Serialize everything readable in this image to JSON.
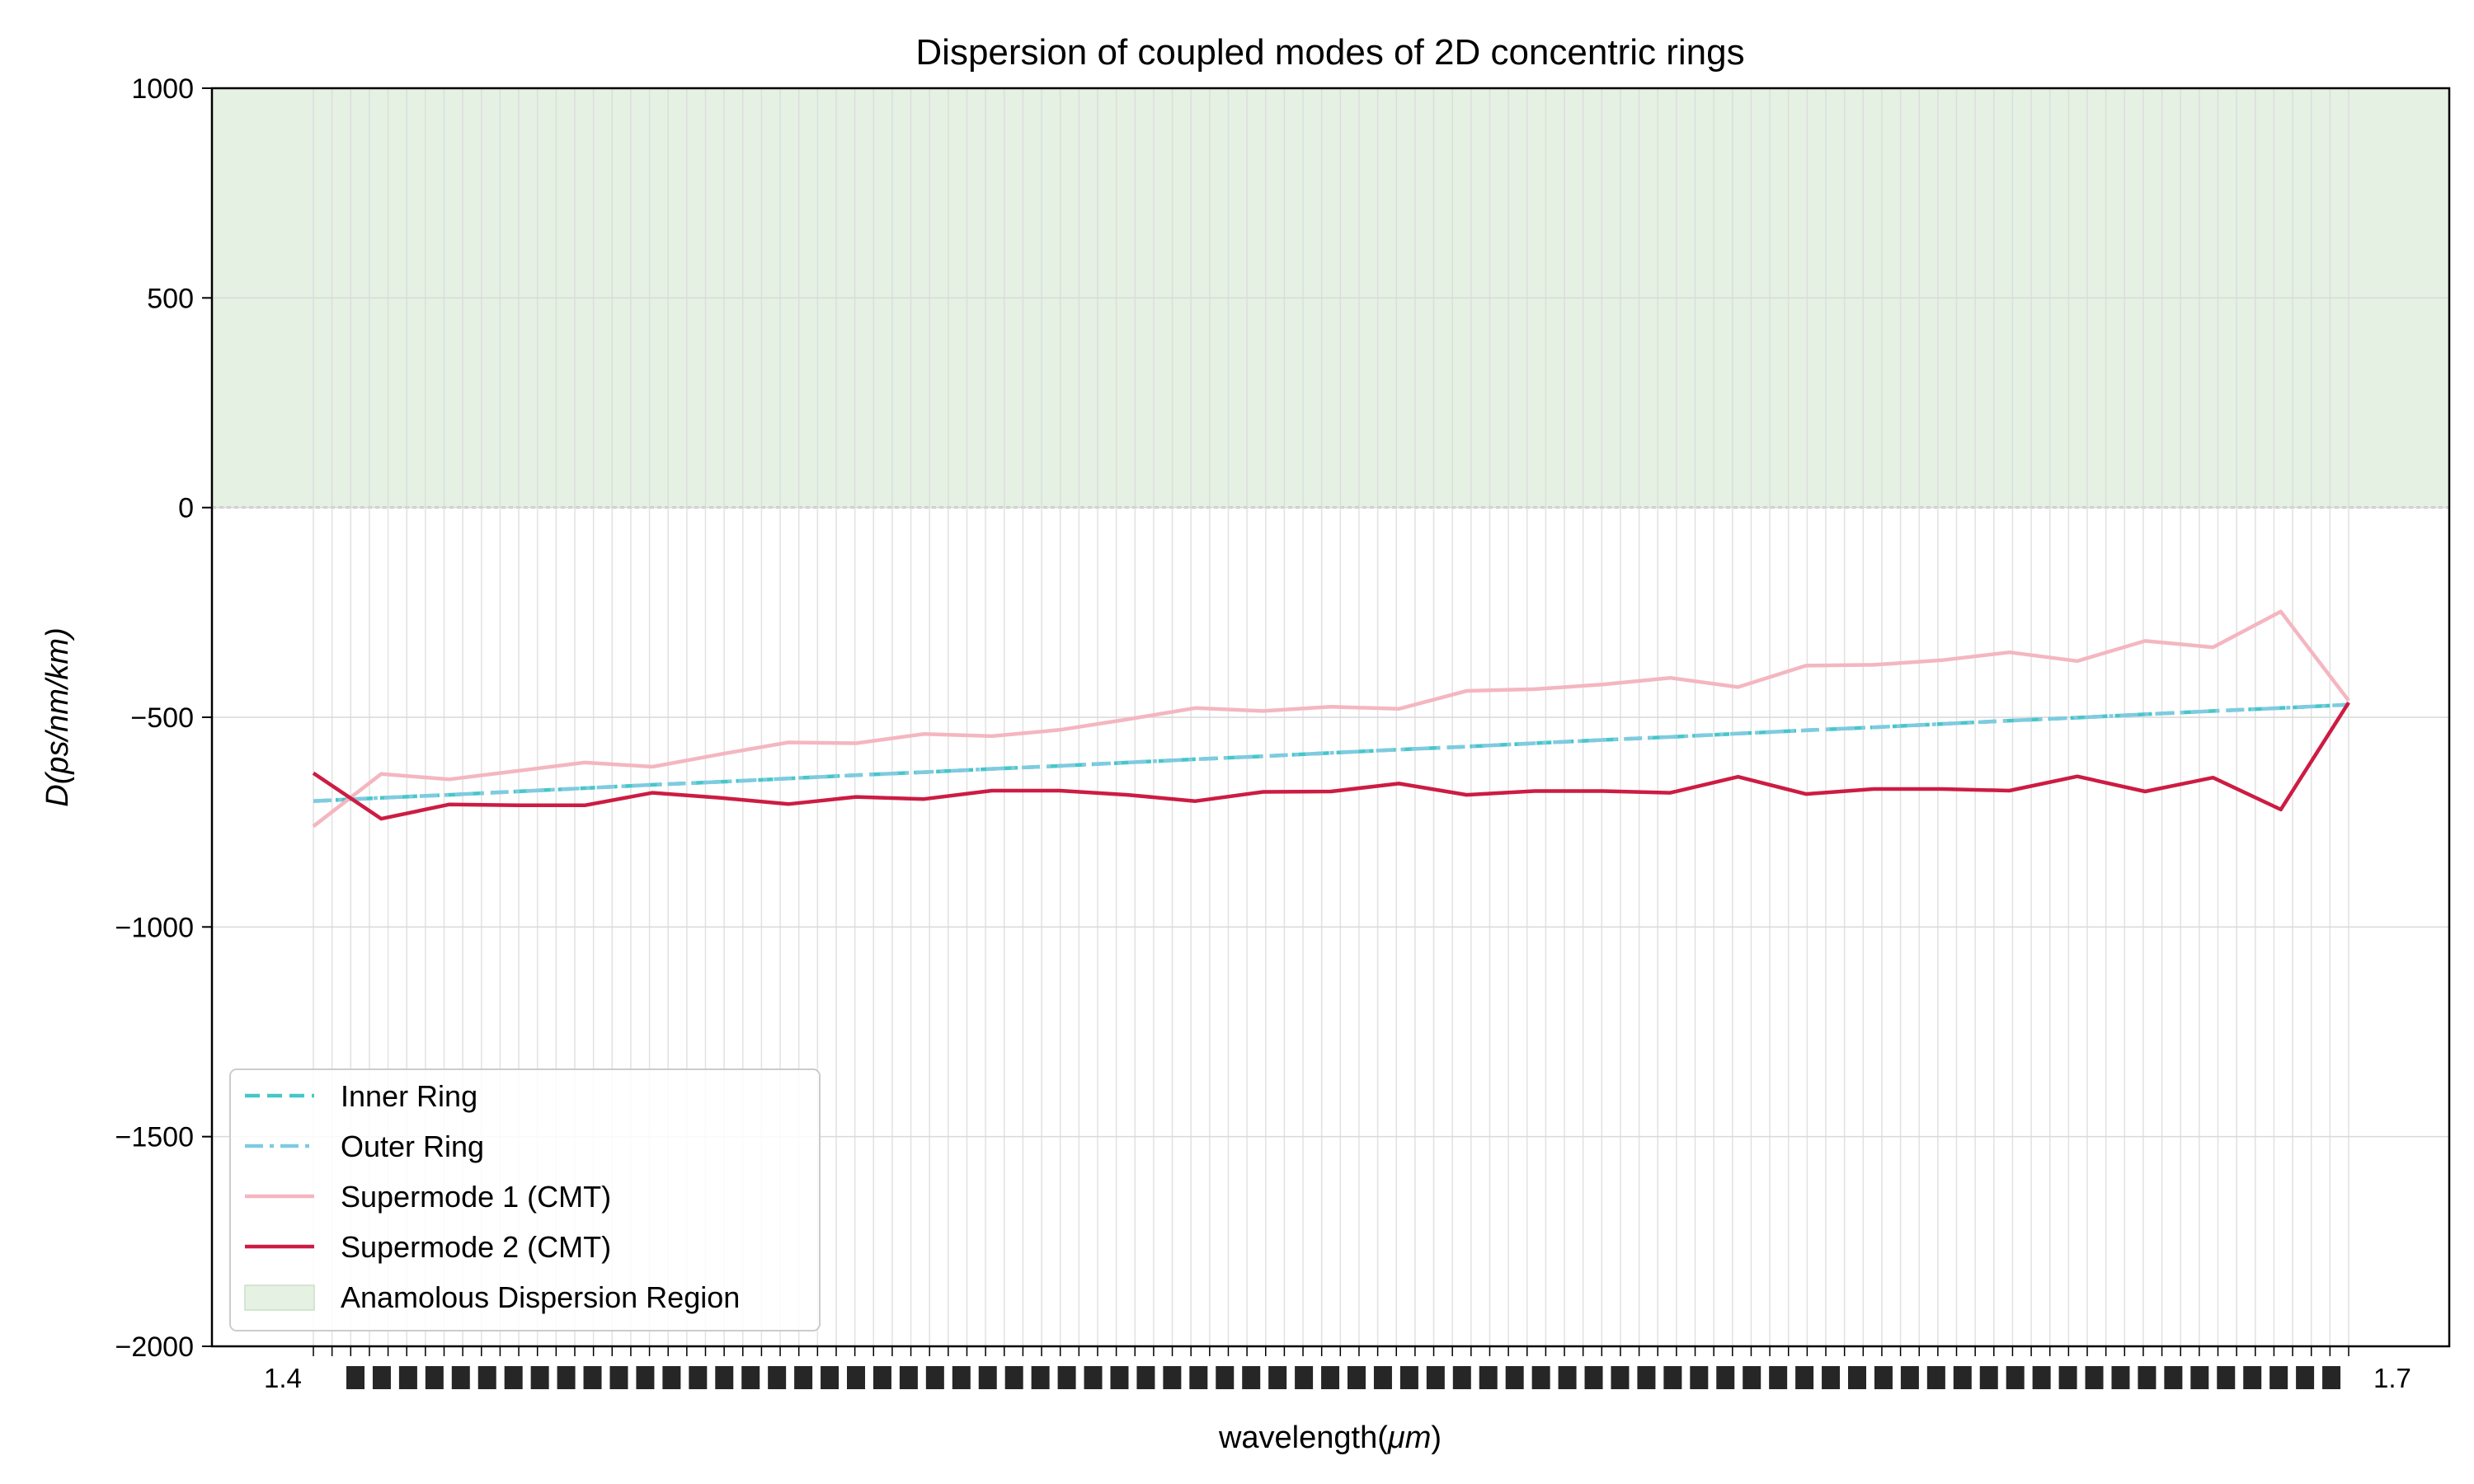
{
  "chart_data": {
    "type": "line",
    "title": "Dispersion of coupled modes of 2D concentric rings",
    "xlabel": "wavelength(",
    "xlabel_italic": "μm",
    "xlabel_suffix": ")",
    "ylabel": "D(ps/nm/km)",
    "ylim": [
      -2000,
      1000
    ],
    "yticks": [
      1000,
      500,
      0,
      -500,
      -1000,
      -1500,
      -2000
    ],
    "ytick_labels": [
      "1000",
      "500",
      "0",
      "−500",
      "−1000",
      "−1500",
      "−2000"
    ],
    "x_count": 31,
    "grid": true,
    "legend_position": "lower left",
    "series": [
      {
        "name": "Inner Ring",
        "style": "dashed",
        "color": "#45c7c7",
        "values": [
          -700,
          -692,
          -685,
          -677,
          -669,
          -661,
          -654,
          -646,
          -638,
          -631,
          -623,
          -616,
          -608,
          -600,
          -593,
          -585,
          -577,
          -570,
          -562,
          -554,
          -547,
          -539,
          -531,
          -524,
          -516,
          -508,
          -501,
          -493,
          -485,
          -478,
          -470
        ]
      },
      {
        "name": "Outer Ring",
        "style": "dashdot",
        "color": "#7fcbe0",
        "values": [
          -700,
          -692,
          -685,
          -677,
          -669,
          -661,
          -654,
          -646,
          -638,
          -631,
          -623,
          -616,
          -608,
          -600,
          -593,
          -585,
          -577,
          -570,
          -562,
          -554,
          -547,
          -539,
          -531,
          -524,
          -516,
          -508,
          -501,
          -493,
          -485,
          -478,
          -470
        ]
      },
      {
        "name": "Supermode 1 (CMT)",
        "style": "solid",
        "color": "#f4b6c0",
        "values": [
          -760,
          -635,
          -648,
          -628,
          -608,
          -618,
          -588,
          -560,
          -562,
          -540,
          -545,
          -530,
          -505,
          -478,
          -485,
          -475,
          -480,
          -437,
          -433,
          -422,
          -406,
          -428,
          -377,
          -375,
          -364,
          -345,
          -366,
          -318,
          -333,
          -248,
          -460
        ]
      },
      {
        "name": "Supermode 2 (CMT)",
        "style": "solid",
        "color": "#cc1c43",
        "values": [
          -633,
          -742,
          -708,
          -710,
          -710,
          -680,
          -692,
          -707,
          -690,
          -695,
          -675,
          -675,
          -685,
          -700,
          -678,
          -677,
          -658,
          -685,
          -676,
          -676,
          -680,
          -642,
          -683,
          -671,
          -671,
          -675,
          -641,
          -677,
          -644,
          -720,
          -465
        ]
      }
    ],
    "region": {
      "name": "Anamolous Dispersion Region",
      "y_from": 0,
      "y_to": 1000,
      "color": "#e5f1e3"
    },
    "xtick_labels_visible": [
      "1.4",
      "1.7"
    ]
  }
}
